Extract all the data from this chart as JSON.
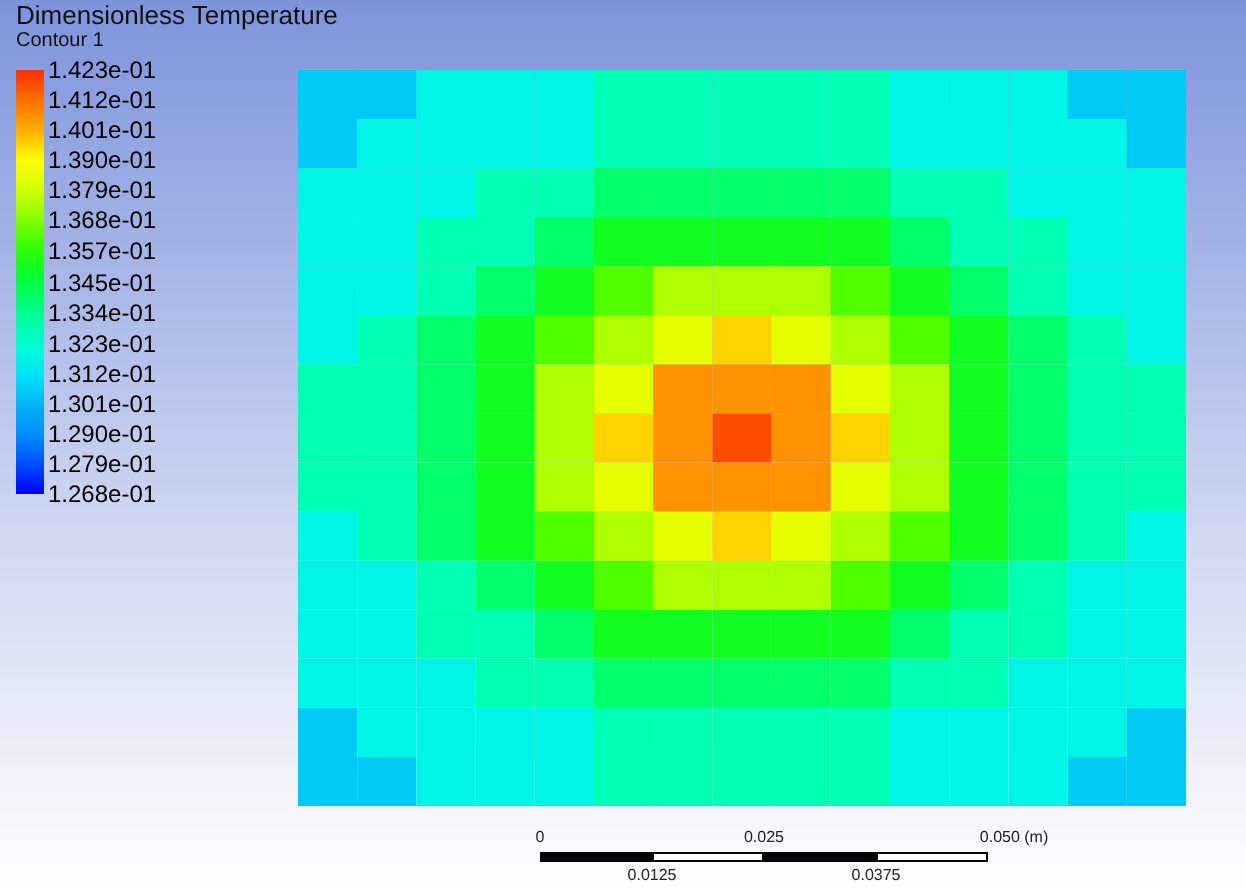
{
  "chart_data": {
    "type": "heatmap",
    "title": "Dimensionless Temperature",
    "subtitle": "Contour 1",
    "categories": [
      null,
      null,
      null,
      null,
      null,
      null,
      null,
      null,
      null,
      null,
      null,
      null,
      null,
      null,
      null
    ],
    "y_categories": [
      null,
      null,
      null,
      null,
      null,
      null,
      null,
      null,
      null,
      null,
      null,
      null,
      null,
      null,
      null
    ],
    "cells": [
      [
        0.1306,
        0.1306,
        0.1318,
        0.1318,
        0.1318,
        0.1328,
        0.1328,
        0.1328,
        0.1328,
        0.1328,
        0.1318,
        0.1318,
        0.1318,
        0.1306,
        0.1306
      ],
      [
        0.1306,
        0.1318,
        0.1318,
        0.1318,
        0.1318,
        0.1328,
        0.1328,
        0.1328,
        0.1328,
        0.1328,
        0.1318,
        0.1318,
        0.1318,
        0.1318,
        0.1306
      ],
      [
        0.1318,
        0.1318,
        0.1318,
        0.1328,
        0.1328,
        0.134,
        0.134,
        0.134,
        0.134,
        0.134,
        0.1328,
        0.1328,
        0.1318,
        0.1318,
        0.1318
      ],
      [
        0.1318,
        0.1318,
        0.1328,
        0.1328,
        0.134,
        0.1351,
        0.1351,
        0.1351,
        0.1351,
        0.1351,
        0.134,
        0.1328,
        0.1328,
        0.1318,
        0.1318
      ],
      [
        0.1318,
        0.1318,
        0.1328,
        0.134,
        0.1351,
        0.1362,
        0.1374,
        0.1374,
        0.1374,
        0.1362,
        0.1351,
        0.134,
        0.1328,
        0.1318,
        0.1318
      ],
      [
        0.1318,
        0.1328,
        0.134,
        0.1351,
        0.1362,
        0.1374,
        0.1384,
        0.1396,
        0.1384,
        0.1374,
        0.1362,
        0.1351,
        0.134,
        0.1328,
        0.1318
      ],
      [
        0.1328,
        0.1328,
        0.134,
        0.1351,
        0.1374,
        0.1384,
        0.1406,
        0.1406,
        0.1406,
        0.1384,
        0.1374,
        0.1351,
        0.134,
        0.1328,
        0.1328
      ],
      [
        0.1328,
        0.1328,
        0.134,
        0.1351,
        0.1374,
        0.1396,
        0.1406,
        0.1418,
        0.1406,
        0.1396,
        0.1374,
        0.1351,
        0.134,
        0.1328,
        0.1328
      ],
      [
        0.1328,
        0.1328,
        0.134,
        0.1351,
        0.1374,
        0.1384,
        0.1406,
        0.1406,
        0.1406,
        0.1384,
        0.1374,
        0.1351,
        0.134,
        0.1328,
        0.1328
      ],
      [
        0.1318,
        0.1328,
        0.134,
        0.1351,
        0.1362,
        0.1374,
        0.1384,
        0.1396,
        0.1384,
        0.1374,
        0.1362,
        0.1351,
        0.134,
        0.1328,
        0.1318
      ],
      [
        0.1318,
        0.1318,
        0.1328,
        0.134,
        0.1351,
        0.1362,
        0.1374,
        0.1374,
        0.1374,
        0.1362,
        0.1351,
        0.134,
        0.1328,
        0.1318,
        0.1318
      ],
      [
        0.1318,
        0.1318,
        0.1328,
        0.1328,
        0.134,
        0.1351,
        0.1351,
        0.1351,
        0.1351,
        0.1351,
        0.134,
        0.1328,
        0.1328,
        0.1318,
        0.1318
      ],
      [
        0.1318,
        0.1318,
        0.1318,
        0.1328,
        0.1328,
        0.134,
        0.134,
        0.134,
        0.134,
        0.134,
        0.1328,
        0.1328,
        0.1318,
        0.1318,
        0.1318
      ],
      [
        0.1306,
        0.1318,
        0.1318,
        0.1318,
        0.1318,
        0.1328,
        0.1328,
        0.1328,
        0.1328,
        0.1328,
        0.1318,
        0.1318,
        0.1318,
        0.1318,
        0.1306
      ],
      [
        0.1306,
        0.1306,
        0.1318,
        0.1318,
        0.1318,
        0.1328,
        0.1328,
        0.1328,
        0.1328,
        0.1328,
        0.1318,
        0.1318,
        0.1318,
        0.1306,
        0.1306
      ]
    ],
    "clim": [
      0.1268,
      0.1423
    ],
    "cticks": [
      {
        "value": 0.1268,
        "label": "1.268e-01"
      },
      {
        "value": 0.1279,
        "label": "1.279e-01"
      },
      {
        "value": 0.129,
        "label": "1.290e-01"
      },
      {
        "value": 0.1301,
        "label": "1.301e-01"
      },
      {
        "value": 0.1312,
        "label": "1.312e-01"
      },
      {
        "value": 0.1323,
        "label": "1.323e-01"
      },
      {
        "value": 0.1334,
        "label": "1.334e-01"
      },
      {
        "value": 0.1345,
        "label": "1.345e-01"
      },
      {
        "value": 0.1357,
        "label": "1.357e-01"
      },
      {
        "value": 0.1368,
        "label": "1.368e-01"
      },
      {
        "value": 0.1379,
        "label": "1.379e-01"
      },
      {
        "value": 0.139,
        "label": "1.390e-01"
      },
      {
        "value": 0.1401,
        "label": "1.401e-01"
      },
      {
        "value": 0.1412,
        "label": "1.412e-01"
      },
      {
        "value": 0.1423,
        "label": "1.423e-01"
      }
    ],
    "colors": [
      "#0000ff",
      "#0050ff",
      "#0090ff",
      "#00b4f0",
      "#00eaff",
      "#00ffd0",
      "#00ff90",
      "#00ff40",
      "#20ff00",
      "#80ff00",
      "#d0ff00",
      "#ffff00",
      "#ffb000",
      "#ff7000",
      "#ff3000"
    ],
    "annotations": [
      "0",
      "0.025",
      "0.050 (m)",
      "0.0125",
      "0.0375"
    ]
  }
}
